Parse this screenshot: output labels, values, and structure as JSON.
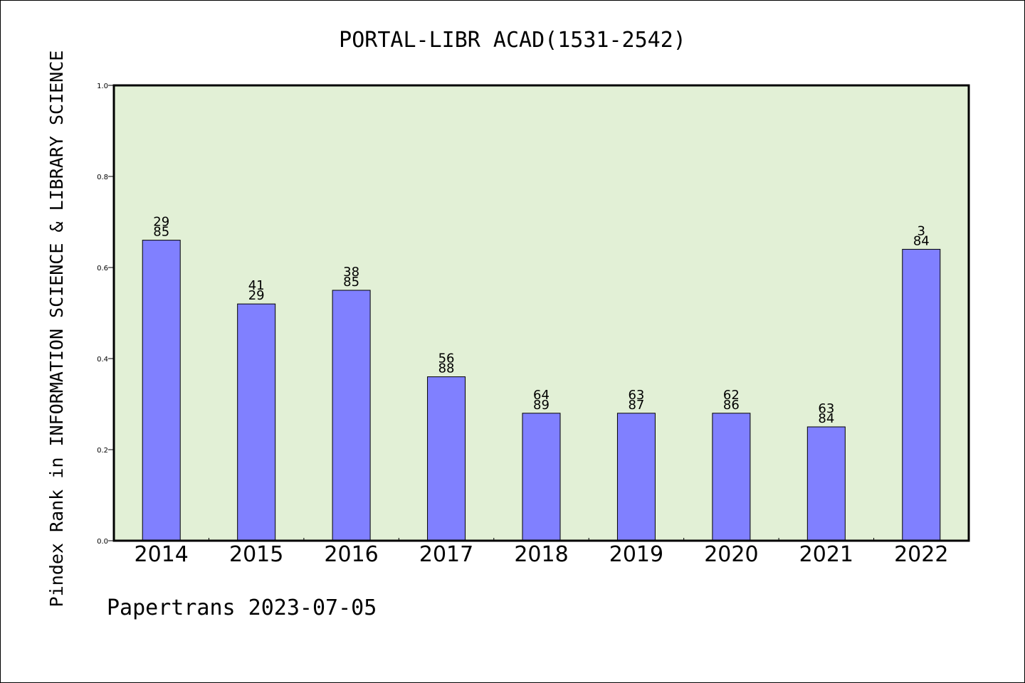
{
  "chart_data": {
    "type": "bar",
    "title": "PORTAL-LIBR ACAD(1531-2542)",
    "xlabel": "",
    "ylabel": "Pindex Rank in INFORMATION SCIENCE & LIBRARY SCIENCE",
    "categories": [
      "2014",
      "2015",
      "2016",
      "2017",
      "2018",
      "2019",
      "2020",
      "2021",
      "2022"
    ],
    "values": [
      0.66,
      0.52,
      0.55,
      0.36,
      0.28,
      0.28,
      0.28,
      0.25,
      0.64
    ],
    "bar_labels": [
      [
        "29",
        "85"
      ],
      [
        "41",
        "29"
      ],
      [
        "38",
        "85"
      ],
      [
        "56",
        "88"
      ],
      [
        "64",
        "89"
      ],
      [
        "63",
        "87"
      ],
      [
        "62",
        "86"
      ],
      [
        "63",
        "84"
      ],
      [
        "3",
        "84"
      ]
    ],
    "ylim": [
      0,
      1.0
    ],
    "yticks": [
      "0.0",
      "0.2",
      "0.4",
      "0.6",
      "0.8",
      "1.0"
    ],
    "grid": false,
    "colors": {
      "bar": "#8080ff",
      "plot_background": "#e2f0d6",
      "axis": "#000000"
    }
  },
  "footer": {
    "text": "Papertrans 2023-07-05"
  }
}
